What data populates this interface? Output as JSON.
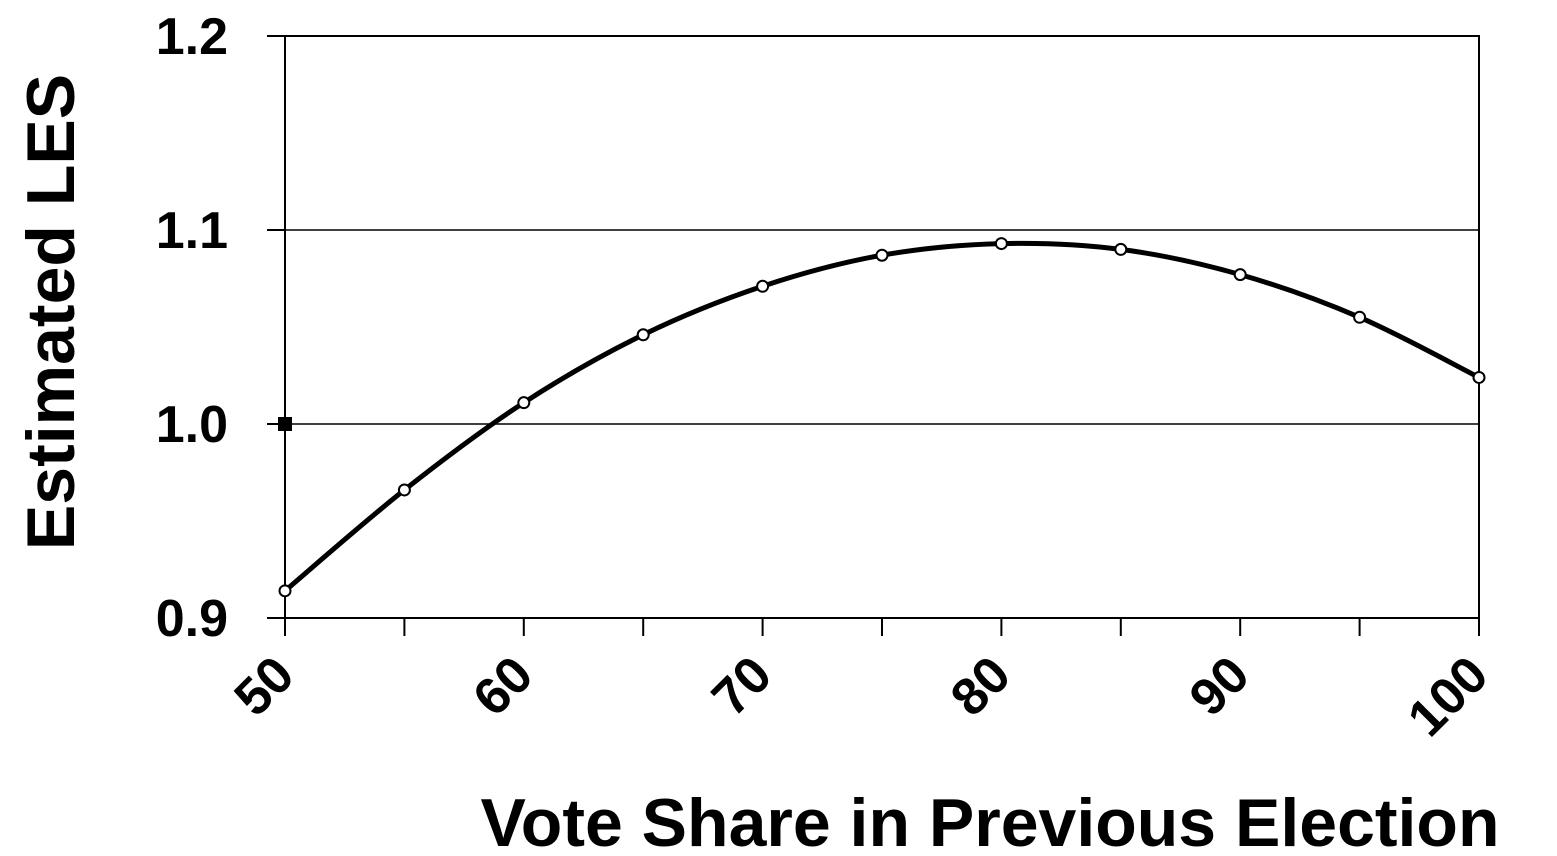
{
  "chart_data": {
    "type": "line",
    "title": "",
    "xlabel": "Vote Share in Previous Election",
    "ylabel": "Estimated LES",
    "xlim": [
      50,
      100
    ],
    "ylim": [
      0.9,
      1.2
    ],
    "x_ticks": [
      50,
      55,
      60,
      65,
      70,
      75,
      80,
      85,
      90,
      95,
      100
    ],
    "x_tick_labels": [
      "50",
      "60",
      "70",
      "80",
      "90",
      "100"
    ],
    "x_tick_label_values": [
      50,
      60,
      70,
      80,
      90,
      100
    ],
    "y_ticks": [
      0.9,
      1.0,
      1.1,
      1.2
    ],
    "y_tick_labels": [
      "0.9",
      "1.0",
      "1.1",
      "1.2"
    ],
    "gridlines": "horizontal",
    "legend": "none",
    "series": [
      {
        "x": [
          50,
          55,
          60,
          65,
          70,
          75,
          80,
          85,
          90,
          95,
          100
        ],
        "values": [
          0.914,
          0.966,
          1.011,
          1.046,
          1.071,
          1.087,
          1.093,
          1.09,
          1.077,
          1.055,
          1.024
        ],
        "marker": "open-circle",
        "color": "#000000"
      }
    ],
    "reference_point": {
      "x": 50,
      "y": 1.0,
      "marker": "filled-square",
      "color": "#000000"
    }
  }
}
